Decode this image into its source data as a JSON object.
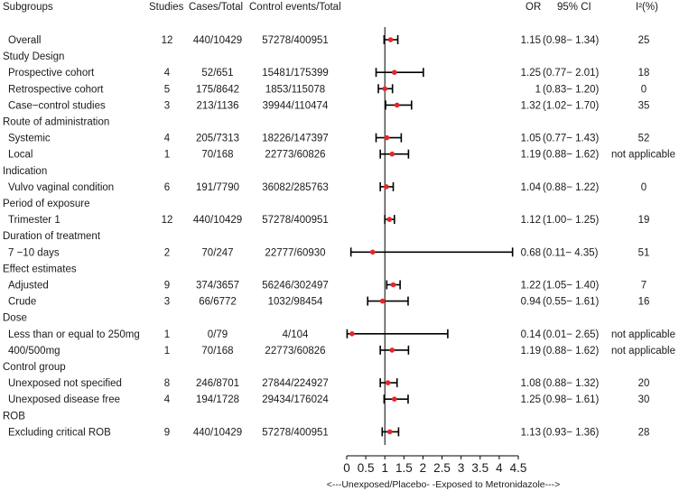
{
  "chart_data": {
    "type": "forest",
    "x_axis": {
      "ticks": [
        "0",
        "0.5",
        "1",
        "1.5",
        "2",
        "2.5",
        "3",
        "3.5",
        "4",
        "4.5"
      ],
      "range": [
        0,
        4.5
      ],
      "reference_line": 1,
      "label": "<---Unexposed/Placebo-  -Exposed to Metronidazole--->"
    },
    "columns": {
      "subgroups": "Subgroups",
      "studies": "Studies",
      "cases": "Cases/Total",
      "controls": "Control events/Total",
      "or": "OR",
      "ci": "95% CI",
      "i2": "I²(%)"
    },
    "rows": [
      {
        "label": "Overall",
        "kind": "data",
        "studies": "12",
        "cases": "440/10429",
        "controls": "57278/400951",
        "or": "1.15",
        "ci": "(0.98− 1.34)",
        "i2": "25",
        "est": 1.15,
        "lo": 0.98,
        "hi": 1.34
      },
      {
        "label": "Study Design",
        "kind": "group"
      },
      {
        "label": "Prospective cohort",
        "kind": "data",
        "studies": "4",
        "cases": "52/651",
        "controls": "15481/175399",
        "or": "1.25",
        "ci": "(0.77− 2.01)",
        "i2": "18",
        "est": 1.25,
        "lo": 0.77,
        "hi": 2.01
      },
      {
        "label": "Retrospective cohort",
        "kind": "data",
        "studies": "5",
        "cases": "175/8642",
        "controls": "1853/115078",
        "or": "1",
        "ci": "(0.83− 1.20)",
        "i2": "0",
        "est": 1.0,
        "lo": 0.83,
        "hi": 1.2
      },
      {
        "label": "Case−control studies",
        "kind": "data",
        "studies": "3",
        "cases": "213/1136",
        "controls": "39944/110474",
        "or": "1.32",
        "ci": "(1.02− 1.70)",
        "i2": "35",
        "est": 1.32,
        "lo": 1.02,
        "hi": 1.7
      },
      {
        "label": "Route of administration",
        "kind": "group"
      },
      {
        "label": "Systemic",
        "kind": "data",
        "studies": "4",
        "cases": "205/7313",
        "controls": "18226/147397",
        "or": "1.05",
        "ci": "(0.77− 1.43)",
        "i2": "52",
        "est": 1.05,
        "lo": 0.77,
        "hi": 1.43
      },
      {
        "label": "Local",
        "kind": "data",
        "studies": "1",
        "cases": "70/168",
        "controls": "22773/60826",
        "or": "1.19",
        "ci": "(0.88− 1.62)",
        "i2": "not applicable",
        "est": 1.19,
        "lo": 0.88,
        "hi": 1.62
      },
      {
        "label": "Indication",
        "kind": "group"
      },
      {
        "label": "Vulvo vaginal condition",
        "kind": "data",
        "studies": "6",
        "cases": "191/7790",
        "controls": "36082/285763",
        "or": "1.04",
        "ci": "(0.88− 1.22)",
        "i2": "0",
        "est": 1.04,
        "lo": 0.88,
        "hi": 1.22
      },
      {
        "label": "Period of exposure",
        "kind": "group"
      },
      {
        "label": "Trimester 1",
        "kind": "data",
        "studies": "12",
        "cases": "440/10429",
        "controls": "57278/400951",
        "or": "1.12",
        "ci": "(1.00− 1.25)",
        "i2": "19",
        "est": 1.12,
        "lo": 1.0,
        "hi": 1.25
      },
      {
        "label": "Duration of treatment",
        "kind": "group"
      },
      {
        "label": "7 −10 days",
        "kind": "data",
        "studies": "2",
        "cases": "70/247",
        "controls": "22777/60930",
        "or": "0.68",
        "ci": "(0.11− 4.35)",
        "i2": "51",
        "est": 0.68,
        "lo": 0.11,
        "hi": 4.35
      },
      {
        "label": "Effect estimates",
        "kind": "group"
      },
      {
        "label": "Adjusted",
        "kind": "data",
        "studies": "9",
        "cases": "374/3657",
        "controls": "56246/302497",
        "or": "1.22",
        "ci": "(1.05− 1.40)",
        "i2": "7",
        "est": 1.22,
        "lo": 1.05,
        "hi": 1.4
      },
      {
        "label": "Crude",
        "kind": "data",
        "studies": "3",
        "cases": "66/6772",
        "controls": "1032/98454",
        "or": "0.94",
        "ci": "(0.55− 1.61)",
        "i2": "16",
        "est": 0.94,
        "lo": 0.55,
        "hi": 1.61
      },
      {
        "label": "Dose",
        "kind": "group"
      },
      {
        "label": "Less than or equal to 250mg",
        "kind": "data",
        "studies": "1",
        "cases": "0/79",
        "controls": "4/104",
        "or": "0.14",
        "ci": "(0.01− 2.65)",
        "i2": "not applicable",
        "est": 0.14,
        "lo": 0.01,
        "hi": 2.65
      },
      {
        "label": "400/500mg",
        "kind": "data",
        "studies": "1",
        "cases": "70/168",
        "controls": "22773/60826",
        "or": "1.19",
        "ci": "(0.88− 1.62)",
        "i2": "not applicable",
        "est": 1.19,
        "lo": 0.88,
        "hi": 1.62
      },
      {
        "label": "Control group",
        "kind": "group"
      },
      {
        "label": "Unexposed not specified",
        "kind": "data",
        "studies": "8",
        "cases": "246/8701",
        "controls": "27844/224927",
        "or": "1.08",
        "ci": "(0.88− 1.32)",
        "i2": "20",
        "est": 1.08,
        "lo": 0.88,
        "hi": 1.32
      },
      {
        "label": "Unexposed disease free",
        "kind": "data",
        "studies": "4",
        "cases": "194/1728",
        "controls": "29434/176024",
        "or": "1.25",
        "ci": "(0.98− 1.61)",
        "i2": "30",
        "est": 1.25,
        "lo": 0.98,
        "hi": 1.61
      },
      {
        "label": "ROB",
        "kind": "group"
      },
      {
        "label": "Excluding critical ROB",
        "kind": "data",
        "studies": "9",
        "cases": "440/10429",
        "controls": "57278/400951",
        "or": "1.13",
        "ci": "(0.93− 1.36)",
        "i2": "28",
        "est": 1.13,
        "lo": 0.93,
        "hi": 1.36
      }
    ],
    "colors": {
      "point": "#e8242c",
      "line": "#000000",
      "text": "#1a1a1a"
    }
  }
}
